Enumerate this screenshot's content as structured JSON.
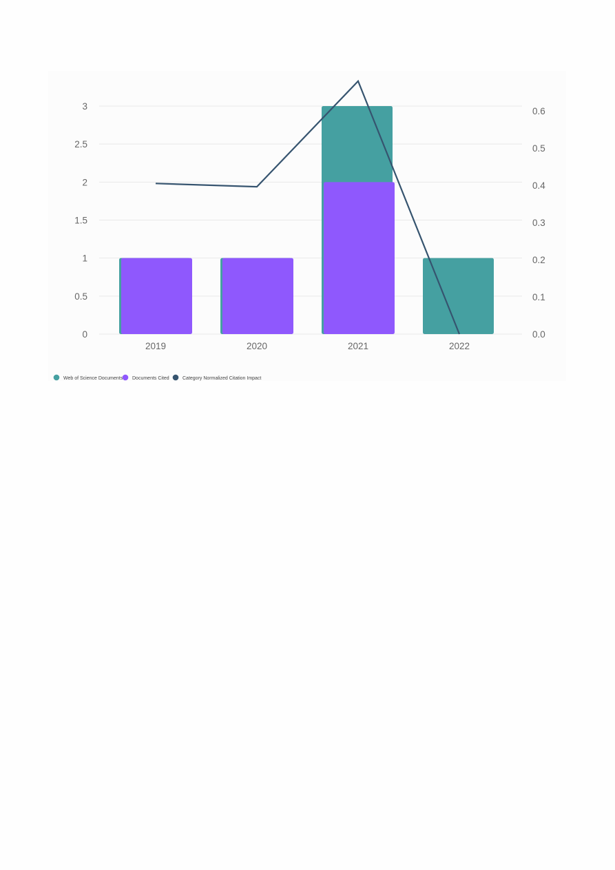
{
  "chart_data": {
    "type": "bar",
    "categories": [
      "2019",
      "2020",
      "2021",
      "2022"
    ],
    "series": [
      {
        "name": "Web of Science Documents",
        "kind": "bar",
        "axis": "left",
        "color": "#45a0a1",
        "values": [
          1,
          1,
          3,
          1
        ]
      },
      {
        "name": "Documents Cited",
        "kind": "bar",
        "axis": "left",
        "color": "#8f58fd",
        "values": [
          1,
          1,
          2,
          0
        ]
      },
      {
        "name": "Category Normalized Citation Impact",
        "kind": "line",
        "axis": "right",
        "color": "#36546f",
        "values": [
          0.405,
          0.396,
          0.68,
          0.0
        ]
      }
    ],
    "y_left": {
      "ticks": [
        0,
        0.5,
        1,
        1.5,
        2,
        2.5,
        3
      ],
      "tick_labels": [
        "0",
        "0.5",
        "1",
        "1.5",
        "2",
        "2.5",
        "3"
      ]
    },
    "y_right": {
      "ticks": [
        0,
        0.1,
        0.2,
        0.3,
        0.4,
        0.5,
        0.6
      ],
      "tick_labels": [
        "0.0",
        "0.1",
        "0.2",
        "0.3",
        "0.4",
        "0.5",
        "0.6"
      ]
    },
    "grid": true,
    "legend_position": "bottom-left",
    "title": "",
    "xlabel": "",
    "ylabel": ""
  }
}
